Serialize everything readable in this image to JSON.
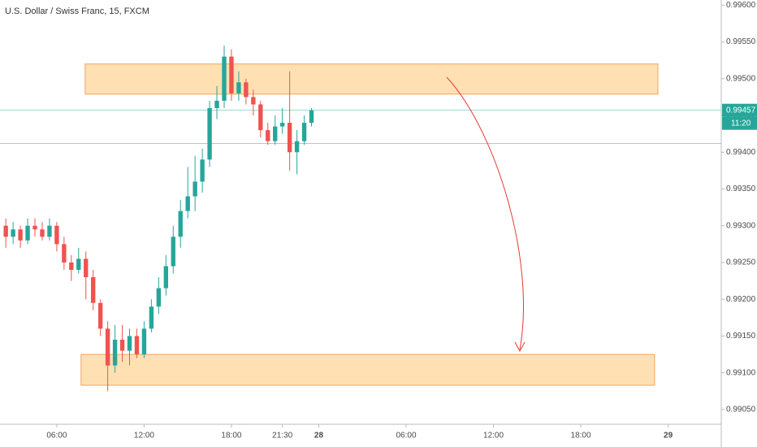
{
  "chart_data": {
    "type": "candlestick",
    "title": "U.S. Dollar / Swiss Franc, 15, FXCM",
    "x": [
      2.5,
      3,
      3.5,
      4,
      4.5,
      5,
      5.5,
      6,
      6.5,
      7,
      7.5,
      8,
      8.5,
      9,
      9.5,
      10,
      10.5,
      11,
      11.5,
      12,
      12.5,
      13,
      13.5,
      14,
      14.5,
      15,
      15.5,
      16,
      16.5,
      17,
      17.5,
      18,
      18.5,
      19,
      19.5,
      20,
      20.5,
      21,
      21.5,
      22,
      22.5,
      23,
      23.5
    ],
    "open": [
      0.993,
      0.99285,
      0.99295,
      0.9928,
      0.993,
      0.99295,
      0.99285,
      0.993,
      0.99275,
      0.9925,
      0.9924,
      0.99255,
      0.9923,
      0.99195,
      0.9916,
      0.9911,
      0.99145,
      0.9913,
      0.9915,
      0.99125,
      0.9916,
      0.9919,
      0.99215,
      0.99245,
      0.99285,
      0.9932,
      0.9934,
      0.9936,
      0.9939,
      0.9946,
      0.9947,
      0.9953,
      0.9948,
      0.99495,
      0.99475,
      0.99465,
      0.9943,
      0.99415,
      0.99435,
      0.9944,
      0.994,
      0.99415,
      0.9944
    ],
    "high": [
      0.9931,
      0.99305,
      0.993,
      0.9931,
      0.9931,
      0.99305,
      0.9931,
      0.99305,
      0.99285,
      0.9926,
      0.9927,
      0.99265,
      0.9924,
      0.992,
      0.9917,
      0.99165,
      0.99165,
      0.9916,
      0.9916,
      0.9917,
      0.992,
      0.9923,
      0.9926,
      0.993,
      0.99335,
      0.9938,
      0.99395,
      0.99405,
      0.9947,
      0.9949,
      0.99545,
      0.9954,
      0.9951,
      0.995,
      0.99485,
      0.9947,
      0.9944,
      0.9945,
      0.9946,
      0.9951,
      0.9943,
      0.9945,
      0.9946
    ],
    "low": [
      0.9927,
      0.99275,
      0.9927,
      0.99275,
      0.99285,
      0.9928,
      0.9928,
      0.99265,
      0.9924,
      0.99225,
      0.99235,
      0.992,
      0.99185,
      0.9915,
      0.99075,
      0.991,
      0.99115,
      0.9911,
      0.9912,
      0.9912,
      0.99155,
      0.9918,
      0.99205,
      0.99235,
      0.9927,
      0.9931,
      0.9932,
      0.99345,
      0.9938,
      0.99445,
      0.9946,
      0.9947,
      0.9947,
      0.99465,
      0.9945,
      0.9942,
      0.9941,
      0.9941,
      0.99425,
      0.99375,
      0.9937,
      0.9941,
      0.99435
    ],
    "close": [
      0.99285,
      0.99295,
      0.9928,
      0.993,
      0.99295,
      0.99285,
      0.993,
      0.99275,
      0.9925,
      0.9924,
      0.99255,
      0.9923,
      0.99195,
      0.9916,
      0.9911,
      0.99145,
      0.9913,
      0.9915,
      0.99125,
      0.9916,
      0.9919,
      0.99215,
      0.99245,
      0.99285,
      0.9932,
      0.9934,
      0.9936,
      0.9939,
      0.9946,
      0.9947,
      0.9953,
      0.9948,
      0.99495,
      0.99475,
      0.99465,
      0.9943,
      0.99415,
      0.99435,
      0.9944,
      0.994,
      0.99415,
      0.9944,
      0.99457
    ],
    "up_color": "#26a69a",
    "down_color": "#ef5350",
    "xlim": [
      2.1,
      51.65
    ],
    "ylim": [
      0.9903,
      0.99607
    ],
    "xticks": [
      {
        "value": 6,
        "label": "06:00"
      },
      {
        "value": 12,
        "label": "12:00"
      },
      {
        "value": 18,
        "label": "18:00"
      },
      {
        "value": 21.5,
        "label": "21:30"
      },
      {
        "value": 24,
        "label": "28"
      },
      {
        "value": 30,
        "label": "06:00"
      },
      {
        "value": 36,
        "label": "12:00"
      },
      {
        "value": 42,
        "label": "18:00"
      },
      {
        "value": 48,
        "label": "29"
      }
    ],
    "yticks": [
      {
        "value": 0.9905,
        "label": "0.99050"
      },
      {
        "value": 0.991,
        "label": "0.99100"
      },
      {
        "value": 0.9915,
        "label": "0.99150"
      },
      {
        "value": 0.992,
        "label": "0.99200"
      },
      {
        "value": 0.9925,
        "label": "0.99250"
      },
      {
        "value": 0.993,
        "label": "0.99300"
      },
      {
        "value": 0.9935,
        "label": "0.99350"
      },
      {
        "value": 0.994,
        "label": "0.99400"
      },
      {
        "value": 0.9945,
        "label": "0.99450"
      },
      {
        "value": 0.995,
        "label": "0.99500"
      },
      {
        "value": 0.9955,
        "label": "0.99550"
      },
      {
        "value": 0.996,
        "label": "0.99600"
      }
    ],
    "last_price": 0.99457,
    "countdown": "11:20",
    "ref_line": 0.99412,
    "zones": [
      {
        "x": [
          7.95,
          47.3
        ],
        "y": [
          0.99479,
          0.9952
        ]
      },
      {
        "x": [
          7.67,
          47.07
        ],
        "y": [
          0.99083,
          0.99125
        ]
      }
    ],
    "zone_color": "#ffcc80",
    "grid": false
  }
}
